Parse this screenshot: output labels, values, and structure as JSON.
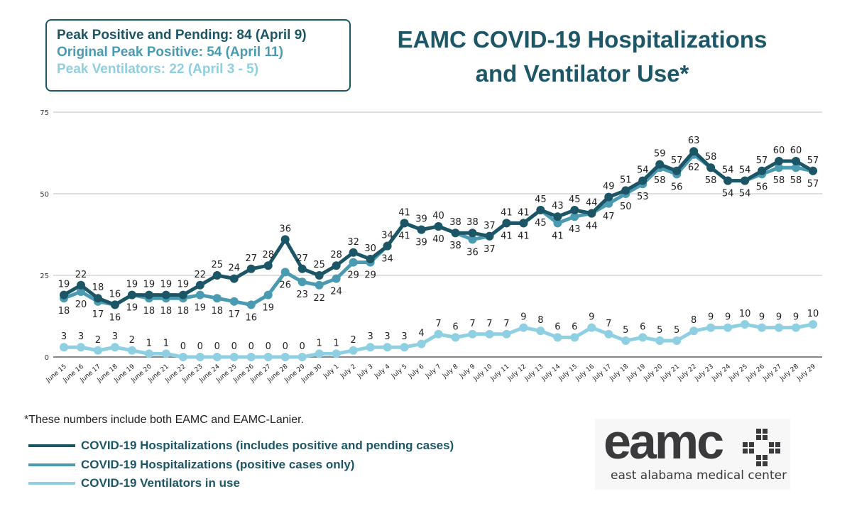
{
  "title": "EAMC COVID-19 Hospitalizations and Ventilator Use*",
  "title_lines": [
    "EAMC COVID-19 Hospitalizations",
    "and Ventilator Use*"
  ],
  "peaks": {
    "peak_positive_pending": "Peak Positive and Pending: 84 (April 9)",
    "original_peak_positive": "Original Peak Positive: 54 (April 11)",
    "peak_ventilators": "Peak Ventilators: 22 (April 3 - 5)"
  },
  "footnote": "*These numbers include both EAMC and EAMC-Lanier.",
  "logo": {
    "wordmark": "eamc",
    "subtitle": "east alabama medical center"
  },
  "colors": {
    "dark": "#1b5566",
    "mid": "#4a9bb1",
    "light": "#8fcfe2",
    "title": "#1d5666"
  },
  "chart_data": {
    "type": "line",
    "title": "EAMC COVID-19 Hospitalizations and Ventilator Use*",
    "xlabel": "",
    "ylabel": "",
    "ylim": [
      0,
      75
    ],
    "yticks": [
      0,
      25,
      50,
      75
    ],
    "grid": true,
    "legend_placement": "bottom-left",
    "categories": [
      "June 15",
      "June 16",
      "June 17",
      "June 18",
      "June 19",
      "June 20",
      "June 21",
      "June 22",
      "June 23",
      "June 24",
      "June 25",
      "June 26",
      "June 27",
      "June 28",
      "June 29",
      "June 30",
      "July 1",
      "July 2",
      "July 3",
      "July 4",
      "July 5",
      "July 6",
      "July 7",
      "July 8",
      "July 9",
      "July 10",
      "July 11",
      "July 12",
      "July 13",
      "July 14",
      "July 15",
      "July 16",
      "July 17",
      "July 18",
      "July 19",
      "July 20",
      "July 21",
      "July 22",
      "July 23",
      "July 24",
      "July 25",
      "July 26",
      "July 27",
      "July 28",
      "July 29"
    ],
    "series": [
      {
        "name": "COVID-19 Hospitalizations (includes positive and pending cases)",
        "color": "#1b5566",
        "label_pos": "above",
        "values": [
          19,
          22,
          18,
          16,
          19,
          19,
          19,
          19,
          22,
          25,
          24,
          27,
          28,
          36,
          27,
          25,
          28,
          32,
          30,
          34,
          41,
          39,
          40,
          38,
          38,
          37,
          41,
          41,
          45,
          43,
          45,
          44,
          49,
          51,
          54,
          59,
          57,
          63,
          58,
          54,
          54,
          57,
          60,
          60,
          57
        ]
      },
      {
        "name": "COVID-19 Hospitalizations (positive cases only)",
        "color": "#4a9bb1",
        "label_pos": "below",
        "values": [
          18,
          20,
          17,
          16,
          19,
          18,
          18,
          18,
          19,
          18,
          17,
          16,
          19,
          26,
          23,
          22,
          24,
          29,
          29,
          34,
          41,
          39,
          40,
          38,
          36,
          37,
          41,
          41,
          45,
          41,
          43,
          44,
          47,
          50,
          53,
          58,
          56,
          62,
          58,
          54,
          54,
          56,
          58,
          58,
          57
        ]
      },
      {
        "name": "COVID-19 Ventilators in use",
        "color": "#8fcfe2",
        "label_pos": "above",
        "values": [
          3,
          3,
          2,
          3,
          2,
          1,
          1,
          0,
          0,
          0,
          0,
          0,
          0,
          0,
          0,
          1,
          1,
          2,
          3,
          3,
          3,
          4,
          7,
          6,
          7,
          7,
          7,
          9,
          8,
          6,
          6,
          9,
          7,
          5,
          6,
          5,
          5,
          8,
          9,
          9,
          10,
          9,
          9,
          9,
          10
        ]
      }
    ]
  }
}
